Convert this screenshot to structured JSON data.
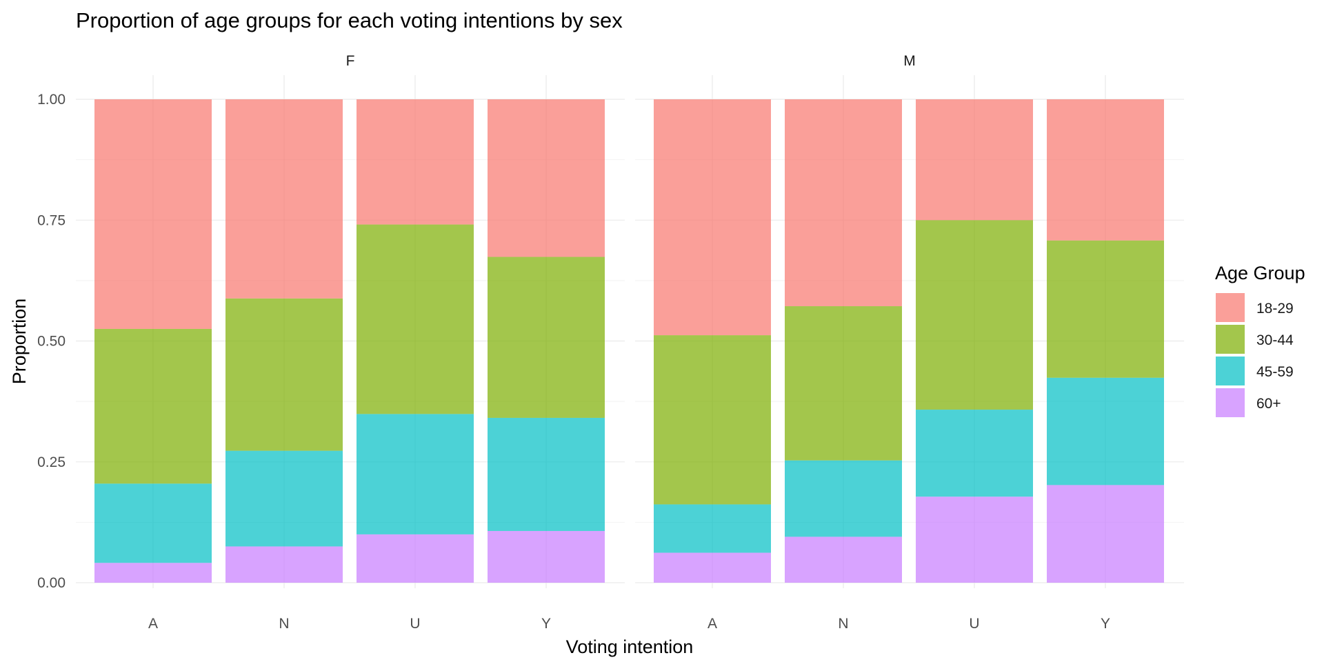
{
  "chart_data": {
    "type": "bar",
    "stacked": "fill",
    "title": "Proportion of age groups for each voting intentions by sex",
    "xlabel": "Voting intention",
    "ylabel": "Proportion",
    "ylim": [
      0,
      1
    ],
    "y_ticks": [
      "0.00",
      "0.25",
      "0.50",
      "0.75",
      "1.00"
    ],
    "grid": true,
    "legend": {
      "title": "Age Group",
      "position": "right",
      "entries": [
        "18-29",
        "30-44",
        "45-59",
        "60+"
      ],
      "colors": [
        "#F8766D",
        "#7CAE00",
        "#00BFC4",
        "#C77CFF"
      ]
    },
    "categories": [
      "A",
      "N",
      "U",
      "Y"
    ],
    "facets": [
      {
        "label": "F",
        "series": [
          {
            "name": "60+",
            "values": [
              0.041,
              0.075,
              0.1,
              0.107
            ]
          },
          {
            "name": "45-59",
            "values": [
              0.164,
              0.198,
              0.249,
              0.234
            ]
          },
          {
            "name": "30-44",
            "values": [
              0.32,
              0.315,
              0.392,
              0.333
            ]
          },
          {
            "name": "18-29",
            "values": [
              0.475,
              0.412,
              0.259,
              0.326
            ]
          }
        ]
      },
      {
        "label": "M",
        "series": [
          {
            "name": "60+",
            "values": [
              0.062,
              0.095,
              0.178,
              0.202
            ]
          },
          {
            "name": "45-59",
            "values": [
              0.1,
              0.158,
              0.18,
              0.222
            ]
          },
          {
            "name": "30-44",
            "values": [
              0.35,
              0.319,
              0.392,
              0.284
            ]
          },
          {
            "name": "18-29",
            "values": [
              0.488,
              0.428,
              0.25,
              0.292
            ]
          }
        ]
      }
    ]
  }
}
